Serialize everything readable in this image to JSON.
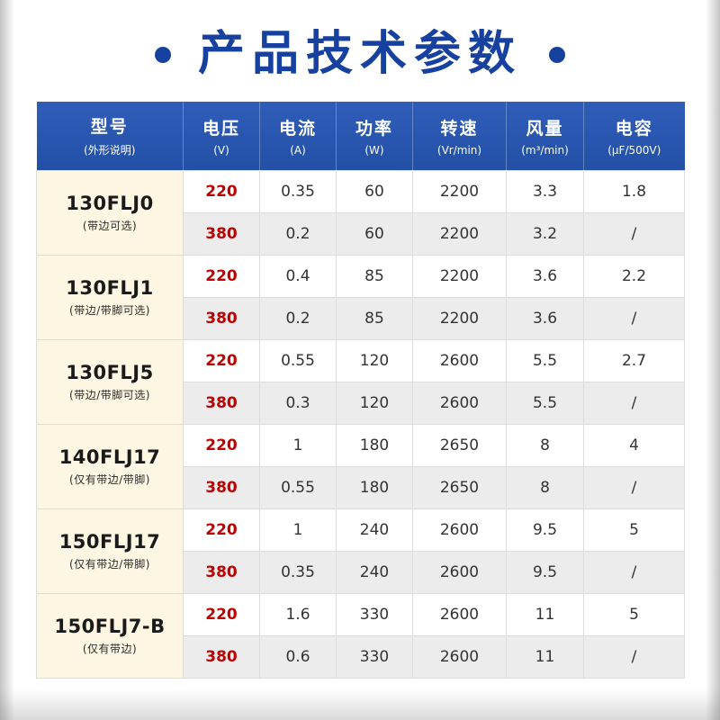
{
  "title": {
    "text": "产品技术参数"
  },
  "table": {
    "header": {
      "model_line1": "型号",
      "model_line2": "(外形说明)",
      "cols": [
        {
          "name": "voltage",
          "line1": "电压",
          "line2": "(V)"
        },
        {
          "name": "current",
          "line1": "电流",
          "line2": "(A)"
        },
        {
          "name": "power",
          "line1": "功率",
          "line2": "(W)"
        },
        {
          "name": "speed",
          "line1": "转速",
          "line2": "(Vr/min)"
        },
        {
          "name": "airflow",
          "line1": "风量",
          "line2": "(m³/min)"
        },
        {
          "name": "capacitance",
          "line1": "电容",
          "line2": "(μF/500V)"
        }
      ]
    },
    "groups": [
      {
        "model": "130FLJ0",
        "desc": "(带边可选)",
        "rows": [
          {
            "voltage": "220",
            "current": "0.35",
            "power": "60",
            "speed": "2200",
            "airflow": "3.3",
            "capacitance": "1.8"
          },
          {
            "voltage": "380",
            "current": "0.2",
            "power": "60",
            "speed": "2200",
            "airflow": "3.2",
            "capacitance": "/"
          }
        ]
      },
      {
        "model": "130FLJ1",
        "desc": "(带边/带脚可选)",
        "rows": [
          {
            "voltage": "220",
            "current": "0.4",
            "power": "85",
            "speed": "2200",
            "airflow": "3.6",
            "capacitance": "2.2"
          },
          {
            "voltage": "380",
            "current": "0.2",
            "power": "85",
            "speed": "2200",
            "airflow": "3.6",
            "capacitance": "/"
          }
        ]
      },
      {
        "model": "130FLJ5",
        "desc": "(带边/带脚可选)",
        "rows": [
          {
            "voltage": "220",
            "current": "0.55",
            "power": "120",
            "speed": "2600",
            "airflow": "5.5",
            "capacitance": "2.7"
          },
          {
            "voltage": "380",
            "current": "0.3",
            "power": "120",
            "speed": "2600",
            "airflow": "5.5",
            "capacitance": "/"
          }
        ]
      },
      {
        "model": "140FLJ17",
        "desc": "(仅有带边/带脚)",
        "rows": [
          {
            "voltage": "220",
            "current": "1",
            "power": "180",
            "speed": "2650",
            "airflow": "8",
            "capacitance": "4"
          },
          {
            "voltage": "380",
            "current": "0.55",
            "power": "180",
            "speed": "2650",
            "airflow": "8",
            "capacitance": "/"
          }
        ]
      },
      {
        "model": "150FLJ17",
        "desc": "(仅有带边/带脚)",
        "rows": [
          {
            "voltage": "220",
            "current": "1",
            "power": "240",
            "speed": "2600",
            "airflow": "9.5",
            "capacitance": "5"
          },
          {
            "voltage": "380",
            "current": "0.35",
            "power": "240",
            "speed": "2600",
            "airflow": "9.5",
            "capacitance": "/"
          }
        ]
      },
      {
        "model": "150FLJ7-B",
        "desc": "(仅有带边)",
        "rows": [
          {
            "voltage": "220",
            "current": "1.6",
            "power": "330",
            "speed": "2600",
            "airflow": "11",
            "capacitance": "5"
          },
          {
            "voltage": "380",
            "current": "0.6",
            "power": "330",
            "speed": "2600",
            "airflow": "11",
            "capacitance": "/"
          }
        ]
      }
    ]
  }
}
